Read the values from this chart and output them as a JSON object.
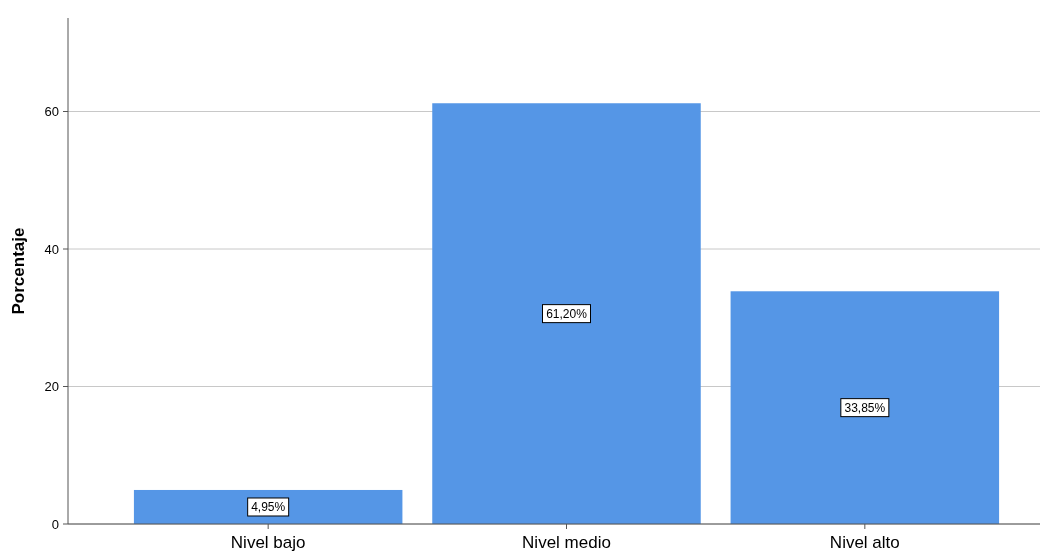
{
  "chart_data": {
    "type": "bar",
    "ylabel": "Porcentaje",
    "categories": [
      "Nivel bajo",
      "Nivel medio",
      "Nivel alto"
    ],
    "values": [
      4.95,
      61.2,
      33.85
    ],
    "value_labels": [
      "4,95%",
      "61,20%",
      "33,85%"
    ],
    "color": "#5596e6",
    "ylim": [
      0,
      73.6
    ],
    "yticks": [
      0,
      20,
      40,
      60
    ],
    "grid": "y"
  }
}
